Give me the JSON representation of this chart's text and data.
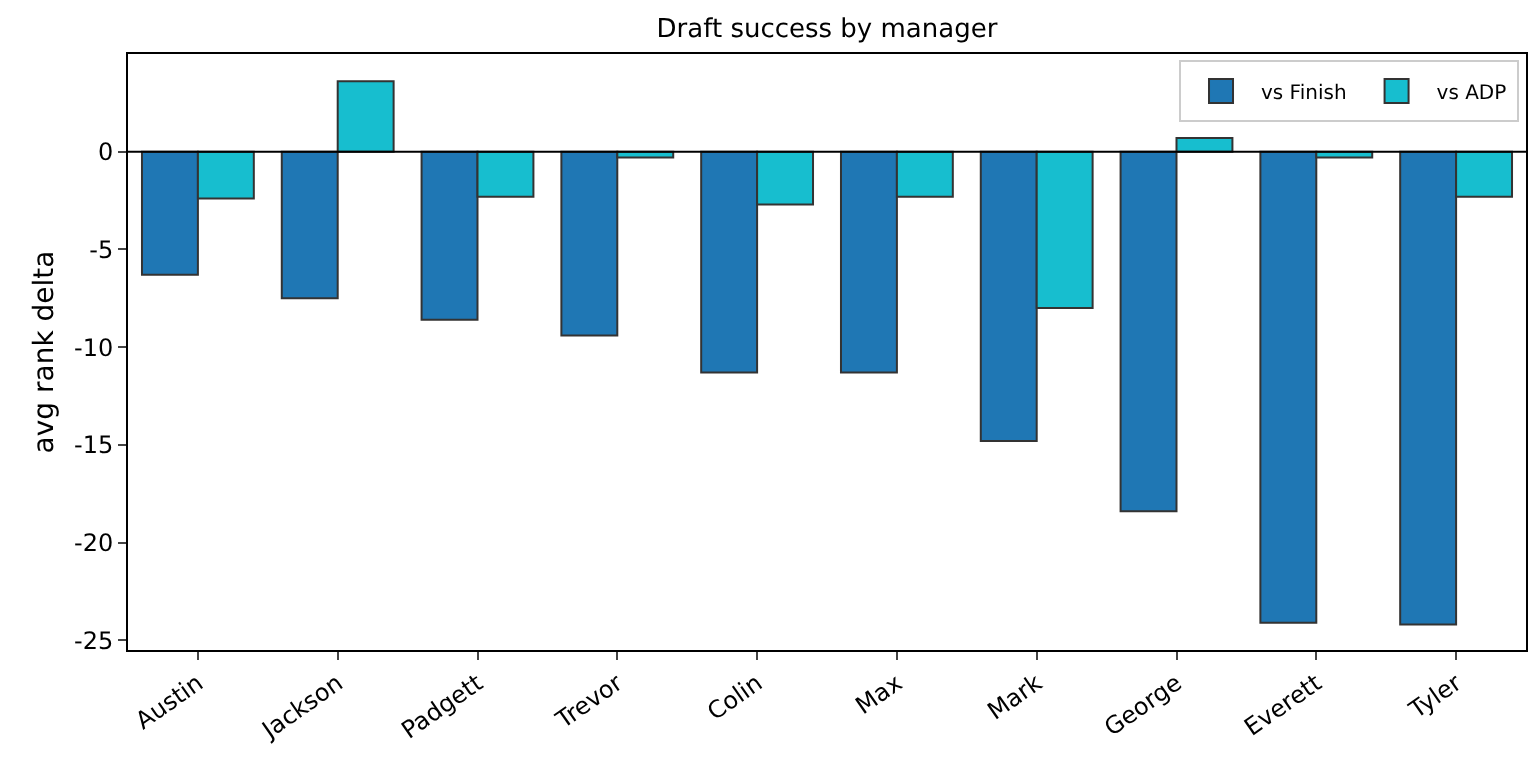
{
  "chart_data": {
    "type": "bar",
    "title": "Draft success by manager",
    "ylabel": "avg rank delta",
    "categories": [
      "Austin",
      "Jackson",
      "Padgett",
      "Trevor",
      "Colin",
      "Max",
      "Mark",
      "George",
      "Everett",
      "Tyler"
    ],
    "series": [
      {
        "name": "vs Finish",
        "color": "#1f77b4",
        "values": [
          -6.3,
          -7.5,
          -8.6,
          -9.4,
          -11.3,
          -11.3,
          -14.8,
          -18.4,
          -24.1,
          -24.2
        ]
      },
      {
        "name": "vs ADP",
        "color": "#17becf",
        "values": [
          -2.4,
          3.6,
          -2.3,
          -0.3,
          -2.7,
          -2.3,
          -8.0,
          0.7,
          -0.3,
          -2.3
        ]
      }
    ],
    "ylim": [
      -25.5,
      5
    ],
    "yticks": [
      -25,
      -20,
      -15,
      -10,
      -5,
      0
    ],
    "ref_lines": [
      {
        "axis": "y",
        "value": 0,
        "color": "#000000"
      }
    ],
    "grid": false,
    "legend": "top right"
  }
}
